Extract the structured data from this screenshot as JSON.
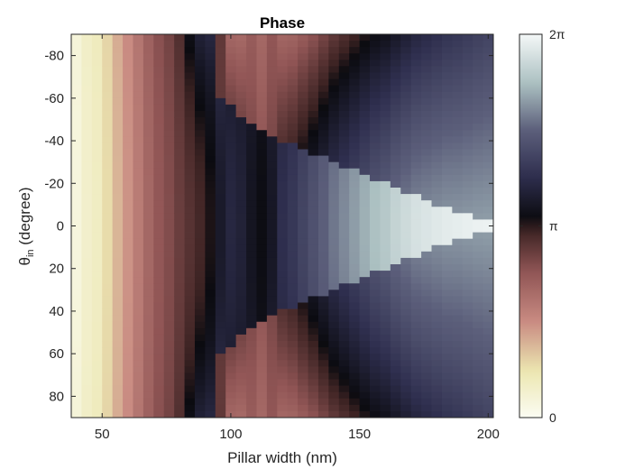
{
  "chart_data": {
    "type": "heatmap",
    "title": "Phase",
    "xlabel": "Pillar width (nm)",
    "ylabel_main": "θ",
    "ylabel_sub": "in",
    "ylabel_rest": "  (degree)",
    "xlim": [
      38,
      202
    ],
    "ylim": [
      -90,
      90
    ],
    "y_reversed": true,
    "xticks": [
      50,
      100,
      150,
      200
    ],
    "yticks": [
      -80,
      -60,
      -40,
      -20,
      0,
      20,
      40,
      60,
      80
    ],
    "colorbar": {
      "range": [
        0,
        6.2832
      ],
      "tick_values": [
        0,
        3.1416,
        6.2832
      ],
      "tick_labels": [
        "0",
        "π",
        "2π"
      ]
    },
    "colormap": [
      {
        "v": 0.0,
        "color": "#fbfcf3"
      },
      {
        "v": 0.12,
        "color": "#ece7b1"
      },
      {
        "v": 0.25,
        "color": "#c98b82"
      },
      {
        "v": 0.38,
        "color": "#905555"
      },
      {
        "v": 0.49,
        "color": "#3b2222"
      },
      {
        "v": 0.52,
        "color": "#0b0b10"
      },
      {
        "v": 0.63,
        "color": "#2f2f4f"
      },
      {
        "v": 0.75,
        "color": "#5c5f7b"
      },
      {
        "v": 0.87,
        "color": "#aabfc0"
      },
      {
        "v": 1.0,
        "color": "#f4f8f8"
      }
    ],
    "columns": {
      "width_start": 40,
      "width_step": 4,
      "count": 41,
      "phase_at_normal_incidence": [
        0.25,
        0.45,
        0.55,
        0.85,
        1.2,
        1.5,
        1.8,
        2.1,
        2.35,
        2.5,
        2.7,
        2.85,
        3.0,
        3.2,
        3.55,
        3.8,
        3.7,
        3.45,
        3.3,
        3.5,
        3.95,
        4.1,
        4.3,
        4.5,
        4.7,
        4.9,
        5.05,
        5.2,
        5.35,
        5.5,
        5.6,
        5.75,
        5.85,
        5.95,
        6.0,
        6.05,
        6.1,
        6.12,
        6.15,
        6.18,
        6.2
      ],
      "angle_dependence": [
        0.05,
        0.05,
        0.06,
        0.07,
        0.08,
        0.08,
        0.09,
        0.1,
        0.1,
        0.12,
        0.2,
        0.5,
        0.7,
        0.6,
        0.5,
        0.4,
        0.3,
        0.2,
        0.2,
        0.3,
        0.4,
        0.5,
        0.55,
        0.6,
        0.6,
        0.6,
        0.6,
        0.6,
        0.6,
        0.6,
        0.6,
        0.6,
        0.55,
        0.5,
        0.45,
        0.4,
        0.35,
        0.3,
        0.25,
        0.2,
        0.15
      ],
      "mode_boundary_deg": [
        null,
        null,
        null,
        null,
        null,
        null,
        null,
        null,
        null,
        null,
        null,
        null,
        null,
        null,
        60,
        56,
        52,
        48,
        44,
        42,
        40,
        38,
        36,
        34,
        32,
        30,
        28,
        26,
        24,
        22,
        20,
        18,
        16,
        14,
        12,
        10,
        8,
        6,
        5,
        4,
        3
      ]
    }
  }
}
